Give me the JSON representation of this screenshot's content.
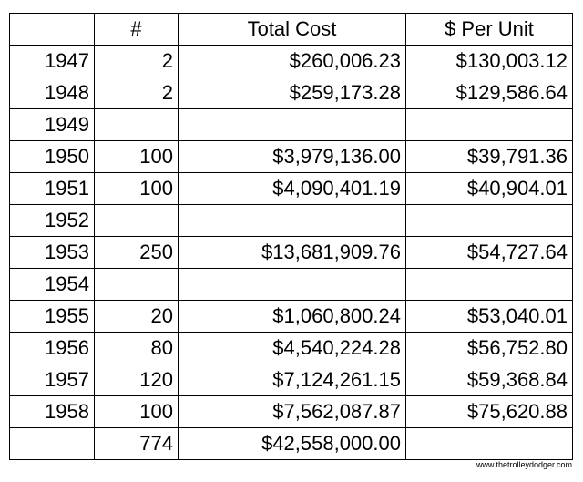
{
  "table": {
    "header": [
      null,
      "#",
      "Total Cost",
      "$ Per Unit"
    ],
    "rows": [
      [
        "1947",
        "2",
        "$260,006.23",
        "$130,003.12"
      ],
      [
        "1948",
        "2",
        "$259,173.28",
        "$129,586.64"
      ],
      [
        "1949",
        null,
        null,
        null
      ],
      [
        "1950",
        "100",
        "$3,979,136.00",
        "$39,791.36"
      ],
      [
        "1951",
        "100",
        "$4,090,401.19",
        "$40,904.01"
      ],
      [
        "1952",
        null,
        null,
        null
      ],
      [
        "1953",
        "250",
        "$13,681,909.76",
        "$54,727.64"
      ],
      [
        "1954",
        null,
        null,
        null
      ],
      [
        "1955",
        "20",
        "$1,060,800.24",
        "$53,040.01"
      ],
      [
        "1956",
        "80",
        "$4,540,224.28",
        "$56,752.80"
      ],
      [
        "1957",
        "120",
        "$7,124,261.15",
        "$59,368.84"
      ],
      [
        "1958",
        "100",
        "$7,562,087.87",
        "$75,620.88"
      ],
      [
        null,
        "774",
        "$42,558,000.00",
        null
      ]
    ]
  },
  "watermark": "www.thetrolleydodger.com"
}
